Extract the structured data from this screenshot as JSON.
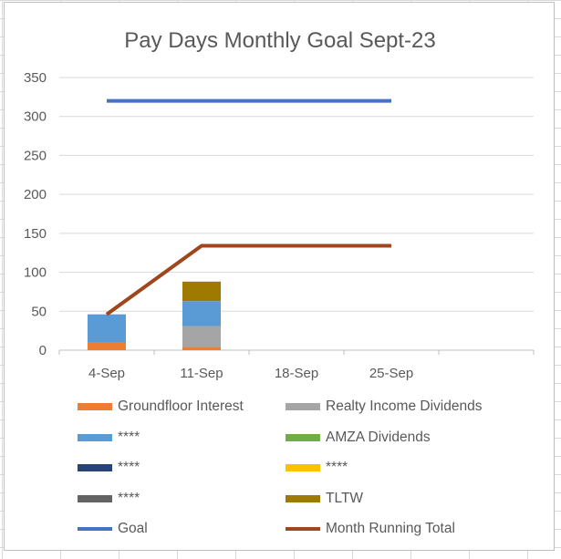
{
  "chart_data": {
    "type": "bar",
    "stacked": true,
    "title": "Pay Days Monthly Goal Sept-23",
    "categories": [
      "4-Sep",
      "11-Sep",
      "18-Sep",
      "25-Sep"
    ],
    "ylim": [
      0,
      350
    ],
    "yticks": [
      0,
      50,
      100,
      150,
      200,
      250,
      300,
      350
    ],
    "grid": true,
    "legend_position": "bottom",
    "series": [
      {
        "name": "Groundfloor Interest",
        "type": "bar",
        "color": "#ED7D31",
        "values": [
          10,
          4,
          0,
          0
        ]
      },
      {
        "name": "Realty Income Dividends",
        "type": "bar",
        "color": "#A5A5A5",
        "values": [
          0,
          27,
          0,
          0
        ]
      },
      {
        "name": "****",
        "type": "bar",
        "color": "#5B9BD5",
        "values": [
          36,
          32,
          0,
          0
        ]
      },
      {
        "name": "AMZA Dividends",
        "type": "bar",
        "color": "#70AD47",
        "values": [
          0,
          0,
          0,
          0
        ]
      },
      {
        "name": "****",
        "type": "bar",
        "color": "#264478",
        "values": [
          0,
          0,
          0,
          0
        ]
      },
      {
        "name": "****",
        "type": "bar",
        "color": "#FFC000",
        "values": [
          0,
          0,
          0,
          0
        ]
      },
      {
        "name": "****",
        "type": "bar",
        "color": "#636363",
        "values": [
          0,
          0,
          0,
          0
        ]
      },
      {
        "name": "TLTW",
        "type": "bar",
        "color": "#9E7A00",
        "values": [
          0,
          25,
          0,
          0
        ]
      },
      {
        "name": "Goal",
        "type": "line",
        "color": "#4472C4",
        "values": [
          320,
          320,
          320,
          320
        ]
      },
      {
        "name": "Month Running Total",
        "type": "line",
        "color": "#A0461C",
        "values": [
          46,
          134,
          134,
          134
        ]
      }
    ]
  }
}
